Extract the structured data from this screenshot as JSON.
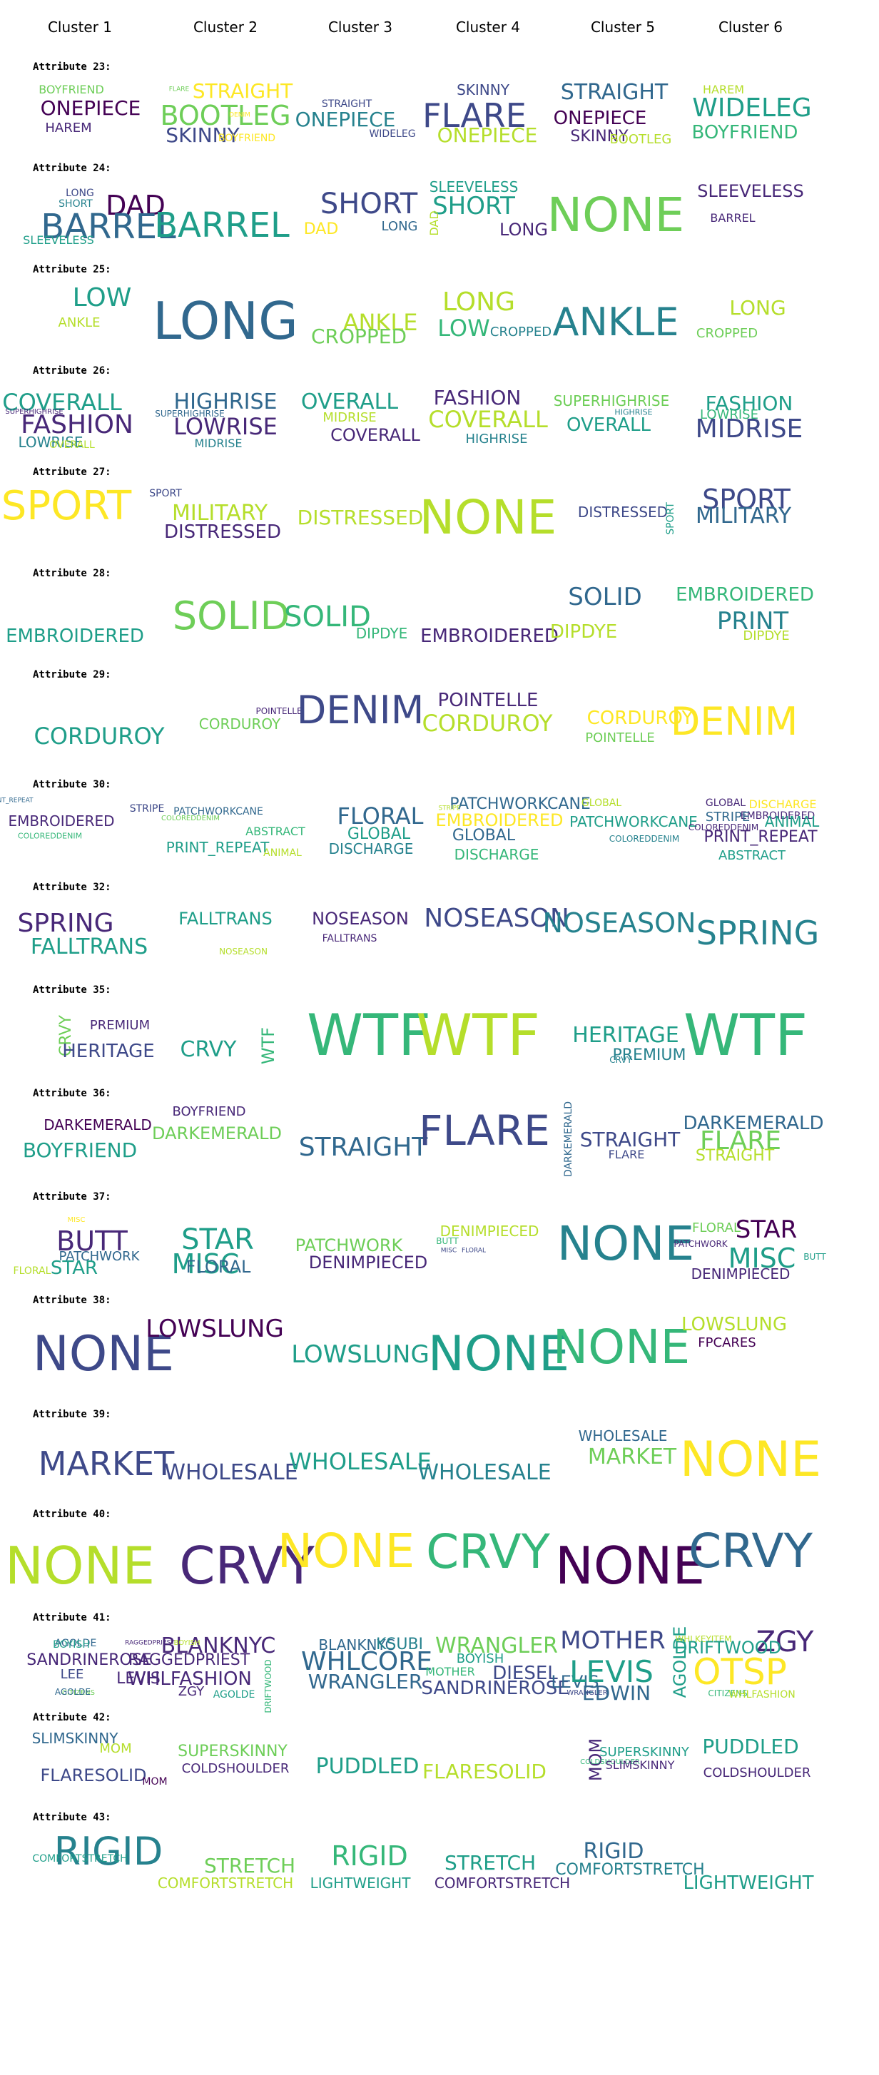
{
  "clusters": [
    "Cluster 1",
    "Cluster 2",
    "Cluster 3",
    "Cluster 4",
    "Cluster 5",
    "Cluster 6"
  ],
  "rows": [
    {
      "title": "Attribute 23:",
      "clouds": [
        [
          "BOYFRIEND",
          "ONEPIECE",
          "HAREM"
        ],
        [
          "FLARE",
          "STRAIGHT",
          "BOOTLEG",
          "DENIM",
          "SKINNY",
          "BOYFRIEND"
        ],
        [
          "STRAIGHT",
          "ONEPIECE",
          "WIDELEG"
        ],
        [
          "SKINNY",
          "FLARE",
          "ONEPIECE"
        ],
        [
          "STRAIGHT",
          "ONEPIECE",
          "SKINNY",
          "BOOTLEG"
        ],
        [
          "HAREM",
          "WIDELEG",
          "BOYFRIEND"
        ]
      ]
    },
    {
      "title": "Attribute 24:",
      "clouds": [
        [
          "LONG",
          "SHORT",
          "DAD",
          "BARREL",
          "SLEEVELESS"
        ],
        [
          "BARREL"
        ],
        [
          "SHORT",
          "DAD",
          "LONG"
        ],
        [
          "SLEEVELESS",
          "SHORT",
          "DAD",
          "LONG"
        ],
        [
          "NONE"
        ],
        [
          "SLEEVELESS",
          "BARREL"
        ]
      ]
    },
    {
      "title": "Attribute 25:",
      "clouds": [
        [
          "LOW",
          "ANKLE"
        ],
        [
          "LONG"
        ],
        [
          "ANKLE",
          "CROPPED"
        ],
        [
          "LONG",
          "LOW",
          "CROPPED"
        ],
        [
          "ANKLE"
        ],
        [
          "LONG",
          "CROPPED"
        ]
      ]
    },
    {
      "title": "Attribute 26:",
      "clouds": [
        [
          "COVERALL",
          "SUPERHIGHRISE",
          "FASHION",
          "LOWRISE",
          "OVERALL"
        ],
        [
          "HIGHRISE",
          "SUPERHIGHRISE",
          "LOWRISE",
          "MIDRISE"
        ],
        [
          "OVERALL",
          "MIDRISE",
          "COVERALL"
        ],
        [
          "FASHION",
          "COVERALL",
          "HIGHRISE"
        ],
        [
          "SUPERHIGHRISE",
          "HIGHRISE",
          "OVERALL"
        ],
        [
          "FASHION",
          "LOWRISE",
          "MIDRISE"
        ]
      ]
    },
    {
      "title": "Attribute 27:",
      "clouds": [
        [
          "SPORT"
        ],
        [
          "SPORT",
          "MILITARY",
          "DISTRESSED"
        ],
        [
          "DISTRESSED"
        ],
        [
          "NONE"
        ],
        [
          "DISTRESSED",
          "SPORT"
        ],
        [
          "SPORT",
          "MILITARY"
        ]
      ]
    },
    {
      "title": "Attribute 28:",
      "clouds": [
        [
          "EMBROIDERED"
        ],
        [
          "SOLID"
        ],
        [
          "SOLID",
          "DIPDYE"
        ],
        [
          "EMBROIDERED"
        ],
        [
          "SOLID",
          "DIPDYE"
        ],
        [
          "EMBROIDERED",
          "PRINT",
          "DIPDYE"
        ]
      ]
    },
    {
      "title": "Attribute 29:",
      "clouds": [
        [
          "CORDUROY"
        ],
        [
          "CORDUROY",
          "POINTELLE"
        ],
        [
          "DENIM"
        ],
        [
          "POINTELLE",
          "CORDUROY"
        ],
        [
          "CORDUROY",
          "POINTELLE"
        ],
        [
          "DENIM"
        ]
      ]
    },
    {
      "title": "Attribute 30:",
      "clouds": [
        [
          "PRINT_REPEAT",
          "STRIPE",
          "EMBROIDERED",
          "COLOREDDENIM",
          "STRIPE"
        ],
        [
          "PATCHWORKCANE",
          "COLOREDDENIM",
          "ABSTRACT",
          "PRINT_REPEAT",
          "ANIMAL"
        ],
        [
          "FLORAL",
          "GLOBAL",
          "DISCHARGE"
        ],
        [
          "PATCHWORKCANE",
          "STRIPE",
          "EMBROIDERED",
          "GLOBAL",
          "DISCHARGE"
        ],
        [
          "GLOBAL",
          "PATCHWORKCANE",
          "COLOREDDENIM"
        ],
        [
          "GLOBAL",
          "DISCHARGE",
          "EMBROIDERED",
          "STRIPE",
          "COLOREDDENIM",
          "ANIMAL",
          "PRINT_REPEAT",
          "ABSTRACT"
        ]
      ]
    },
    {
      "title": "Attribute 32:",
      "clouds": [
        [
          "SPRING",
          "FALLTRANS"
        ],
        [
          "FALLTRANS",
          "NOSEASON"
        ],
        [
          "NOSEASON",
          "FALLTRANS"
        ],
        [
          "NOSEASON"
        ],
        [
          "NOSEASON"
        ],
        [
          "SPRING"
        ]
      ]
    },
    {
      "title": "Attribute 35:",
      "clouds": [
        [
          "CRVY",
          "PREMIUM",
          "HERITAGE"
        ],
        [
          "CRVY",
          "WTF"
        ],
        [
          "WTF"
        ],
        [
          "WTF"
        ],
        [
          "HERITAGE",
          "CRVY",
          "PREMIUM"
        ],
        [
          "WTF"
        ]
      ]
    },
    {
      "title": "Attribute 36:",
      "clouds": [
        [
          "DARKEMERALD",
          "BOYFRIEND"
        ],
        [
          "BOYFRIEND",
          "DARKEMERALD"
        ],
        [
          "STRAIGHT"
        ],
        [
          "FLARE"
        ],
        [
          "DARKEMERALD",
          "STRAIGHT",
          "FLARE"
        ],
        [
          "DARKEMERALD",
          "FLARE",
          "STRAIGHT"
        ]
      ]
    },
    {
      "title": "Attribute 37:",
      "clouds": [
        [
          "MISC",
          "BUTT",
          "PATCHWORK",
          "STAR",
          "FLORAL"
        ],
        [
          "STAR",
          "MISC",
          "FLORAL"
        ],
        [
          "PATCHWORK",
          "DENIMPIECED"
        ],
        [
          "DENIMPIECED",
          "BUTT",
          "MISC",
          "FLORAL"
        ],
        [
          "NONE"
        ],
        [
          "FLORAL",
          "STAR",
          "PATCHWORK",
          "MISC",
          "BUTT",
          "DENIMPIECED"
        ]
      ]
    },
    {
      "title": "Attribute 38:",
      "clouds": [
        [
          "NONE"
        ],
        [
          "LOWSLUNG"
        ],
        [
          "LOWSLUNG"
        ],
        [
          "NONE"
        ],
        [
          "NONE"
        ],
        [
          "LOWSLUNG",
          "FPCARES"
        ]
      ]
    },
    {
      "title": "Attribute 39:",
      "clouds": [
        [
          "MARKET"
        ],
        [
          "WHOLESALE"
        ],
        [
          "WHOLESALE"
        ],
        [
          "WHOLESALE"
        ],
        [
          "WHOLESALE",
          "MARKET"
        ],
        [
          "NONE"
        ]
      ]
    },
    {
      "title": "Attribute 40:",
      "clouds": [
        [
          "NONE"
        ],
        [
          "CRVY"
        ],
        [
          "NONE"
        ],
        [
          "CRVY"
        ],
        [
          "NONE"
        ],
        [
          "CRVY"
        ]
      ]
    },
    {
      "title": "Attribute 41:",
      "clouds": [
        [
          "AGOLDE",
          "BOYISH",
          "RAGGEDPRIEST",
          "SANDRINEROSE",
          "LEE",
          "LEVIS",
          "CITIZENS",
          "AGOLDE"
        ],
        [
          "BLANKNYC",
          "RAGGEDPRIEST",
          "WHLFASHION",
          "ZGY",
          "AGOLDE",
          "DRIFTWOOD",
          "BOYISH"
        ],
        [
          "BLANKNYC",
          "KSUBI",
          "WHLCORE",
          "WRANGLER"
        ],
        [
          "WRANGLER",
          "BOYISH",
          "MOTHER",
          "DIESEL",
          "SANDRINEROSE",
          "LEVIS"
        ],
        [
          "MOTHER",
          "LEVIS",
          "AGOLDE",
          "EDWIN",
          "WRANGLER"
        ],
        [
          "WHLKEYITEM",
          "ZGY",
          "DRIFTWOOD",
          "OTSP",
          "CITIZENS",
          "WHLFASHION"
        ]
      ]
    },
    {
      "title": "Attribute 42:",
      "clouds": [
        [
          "SLIMSKINNY",
          "MOM",
          "FLARESOLID"
        ],
        [
          "SUPERSKINNY",
          "COLDSHOULDER",
          "MOM"
        ],
        [
          "PUDDLED"
        ],
        [
          "FLARESOLID"
        ],
        [
          "MOM",
          "SUPERSKINNY",
          "COLDSHOULDER",
          "SLIMSKINNY"
        ],
        [
          "PUDDLED",
          "COLDSHOULDER"
        ]
      ]
    },
    {
      "title": "Attribute 43:",
      "clouds": [
        [
          "RIGID",
          "COMFORTSTRETCH"
        ],
        [
          "STRETCH",
          "COMFORTSTRETCH"
        ],
        [
          "RIGID",
          "LIGHTWEIGHT"
        ],
        [
          "STRETCH",
          "COMFORTSTRETCH"
        ],
        [
          "RIGID",
          "COMFORTSTRETCH"
        ],
        [
          "LIGHTWEIGHT"
        ]
      ]
    }
  ]
}
